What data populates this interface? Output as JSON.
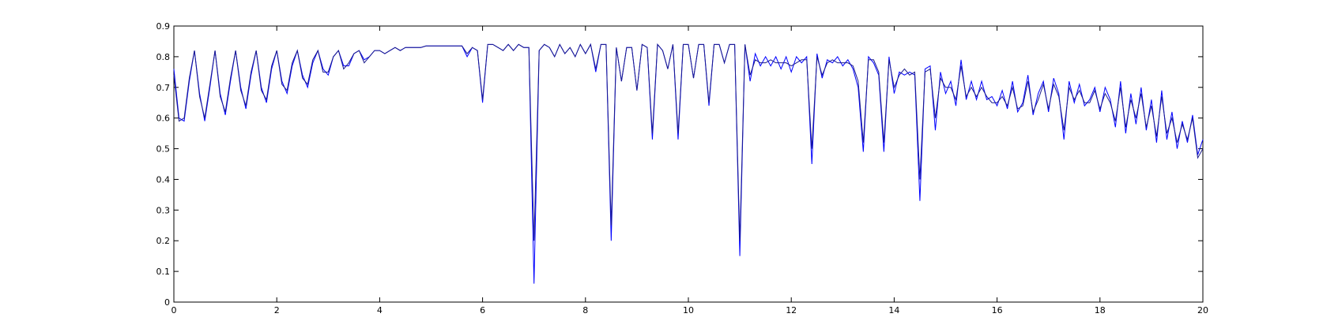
{
  "chart_data": {
    "type": "line",
    "x": [
      0,
      0.1,
      0.2,
      0.3,
      0.4,
      0.5,
      0.6,
      0.7,
      0.8,
      0.9,
      1,
      1.1,
      1.2,
      1.3,
      1.4,
      1.5,
      1.6,
      1.7,
      1.8,
      1.9,
      2,
      2.1,
      2.2,
      2.3,
      2.4,
      2.5,
      2.6,
      2.7,
      2.8,
      2.9,
      3,
      3.1,
      3.2,
      3.3,
      3.4,
      3.5,
      3.6,
      3.7,
      3.8,
      3.9,
      4,
      4.1,
      4.2,
      4.3,
      4.4,
      4.5,
      4.6,
      4.7,
      4.8,
      4.9,
      5,
      5.1,
      5.2,
      5.3,
      5.4,
      5.5,
      5.6,
      5.7,
      5.8,
      5.9,
      6,
      6.1,
      6.2,
      6.3,
      6.4,
      6.5,
      6.6,
      6.7,
      6.8,
      6.9,
      7,
      7.1,
      7.2,
      7.3,
      7.4,
      7.5,
      7.6,
      7.7,
      7.8,
      7.9,
      8,
      8.1,
      8.2,
      8.3,
      8.4,
      8.5,
      8.6,
      8.7,
      8.8,
      8.9,
      9,
      9.1,
      9.2,
      9.3,
      9.4,
      9.5,
      9.6,
      9.7,
      9.8,
      9.9,
      10,
      10.1,
      10.2,
      10.3,
      10.4,
      10.5,
      10.6,
      10.7,
      10.8,
      10.9,
      11,
      11.1,
      11.2,
      11.3,
      11.4,
      11.5,
      11.6,
      11.7,
      11.8,
      11.9,
      12,
      12.1,
      12.2,
      12.3,
      12.4,
      12.5,
      12.6,
      12.7,
      12.8,
      12.9,
      13,
      13.1,
      13.2,
      13.3,
      13.4,
      13.5,
      13.6,
      13.7,
      13.8,
      13.9,
      14,
      14.1,
      14.2,
      14.3,
      14.4,
      14.5,
      14.6,
      14.7,
      14.8,
      14.9,
      15,
      15.1,
      15.2,
      15.3,
      15.4,
      15.5,
      15.6,
      15.7,
      15.8,
      15.9,
      16,
      16.1,
      16.2,
      16.3,
      16.4,
      16.5,
      16.6,
      16.7,
      16.8,
      16.9,
      17,
      17.1,
      17.2,
      17.3,
      17.4,
      17.5,
      17.6,
      17.7,
      17.8,
      17.9,
      18,
      18.1,
      18.2,
      18.3,
      18.4,
      18.5,
      18.6,
      18.7,
      18.8,
      18.9,
      19,
      19.1,
      19.2,
      19.3,
      19.4,
      19.5,
      19.6,
      19.7,
      19.8,
      19.9,
      20
    ],
    "series": [
      {
        "color": "#0000ff",
        "values": [
          0.76,
          0.6,
          0.59,
          0.72,
          0.82,
          0.68,
          0.59,
          0.7,
          0.82,
          0.68,
          0.61,
          0.72,
          0.82,
          0.7,
          0.63,
          0.74,
          0.82,
          0.7,
          0.65,
          0.76,
          0.82,
          0.72,
          0.68,
          0.77,
          0.82,
          0.74,
          0.7,
          0.78,
          0.82,
          0.76,
          0.74,
          0.8,
          0.82,
          0.77,
          0.77,
          0.81,
          0.82,
          0.79,
          0.8,
          0.82,
          0.82,
          0.81,
          0.82,
          0.83,
          0.82,
          0.83,
          0.83,
          0.83,
          0.83,
          0.835,
          0.835,
          0.835,
          0.835,
          0.835,
          0.835,
          0.835,
          0.835,
          0.8,
          0.83,
          0.82,
          0.65,
          0.84,
          0.84,
          0.83,
          0.82,
          0.84,
          0.82,
          0.84,
          0.83,
          0.83,
          0.06,
          0.82,
          0.84,
          0.83,
          0.8,
          0.84,
          0.81,
          0.83,
          0.8,
          0.84,
          0.81,
          0.84,
          0.75,
          0.84,
          0.84,
          0.2,
          0.83,
          0.72,
          0.83,
          0.83,
          0.69,
          0.84,
          0.83,
          0.53,
          0.84,
          0.82,
          0.76,
          0.84,
          0.53,
          0.84,
          0.84,
          0.73,
          0.84,
          0.84,
          0.64,
          0.84,
          0.84,
          0.78,
          0.84,
          0.84,
          0.15,
          0.84,
          0.72,
          0.81,
          0.77,
          0.8,
          0.77,
          0.8,
          0.76,
          0.8,
          0.75,
          0.8,
          0.78,
          0.8,
          0.45,
          0.81,
          0.73,
          0.79,
          0.78,
          0.8,
          0.77,
          0.79,
          0.76,
          0.7,
          0.49,
          0.8,
          0.78,
          0.74,
          0.49,
          0.8,
          0.68,
          0.75,
          0.74,
          0.75,
          0.74,
          0.33,
          0.76,
          0.77,
          0.56,
          0.75,
          0.68,
          0.72,
          0.64,
          0.79,
          0.66,
          0.72,
          0.66,
          0.72,
          0.66,
          0.67,
          0.64,
          0.69,
          0.63,
          0.72,
          0.62,
          0.65,
          0.74,
          0.61,
          0.68,
          0.72,
          0.62,
          0.73,
          0.68,
          0.53,
          0.72,
          0.65,
          0.71,
          0.64,
          0.66,
          0.7,
          0.62,
          0.7,
          0.66,
          0.57,
          0.72,
          0.55,
          0.68,
          0.58,
          0.7,
          0.56,
          0.66,
          0.52,
          0.69,
          0.53,
          0.62,
          0.5,
          0.59,
          0.52,
          0.61,
          0.48,
          0.53
        ]
      },
      {
        "color": "#1a1a8c",
        "values": [
          0.74,
          0.59,
          0.6,
          0.73,
          0.82,
          0.67,
          0.6,
          0.71,
          0.82,
          0.67,
          0.62,
          0.73,
          0.82,
          0.69,
          0.64,
          0.75,
          0.82,
          0.69,
          0.66,
          0.77,
          0.82,
          0.71,
          0.69,
          0.78,
          0.82,
          0.73,
          0.71,
          0.79,
          0.82,
          0.75,
          0.75,
          0.8,
          0.82,
          0.76,
          0.78,
          0.81,
          0.82,
          0.78,
          0.8,
          0.82,
          0.82,
          0.81,
          0.82,
          0.83,
          0.82,
          0.83,
          0.83,
          0.83,
          0.83,
          0.835,
          0.835,
          0.835,
          0.835,
          0.835,
          0.835,
          0.835,
          0.835,
          0.81,
          0.83,
          0.82,
          0.66,
          0.84,
          0.84,
          0.83,
          0.82,
          0.84,
          0.82,
          0.84,
          0.83,
          0.83,
          0.2,
          0.82,
          0.84,
          0.83,
          0.8,
          0.84,
          0.81,
          0.83,
          0.8,
          0.84,
          0.81,
          0.84,
          0.76,
          0.84,
          0.84,
          0.25,
          0.83,
          0.72,
          0.83,
          0.83,
          0.69,
          0.84,
          0.83,
          0.55,
          0.84,
          0.82,
          0.76,
          0.84,
          0.55,
          0.84,
          0.84,
          0.73,
          0.84,
          0.84,
          0.65,
          0.84,
          0.84,
          0.78,
          0.84,
          0.84,
          0.2,
          0.84,
          0.74,
          0.79,
          0.78,
          0.78,
          0.79,
          0.78,
          0.78,
          0.78,
          0.77,
          0.78,
          0.79,
          0.79,
          0.5,
          0.8,
          0.74,
          0.78,
          0.79,
          0.78,
          0.78,
          0.78,
          0.77,
          0.72,
          0.52,
          0.79,
          0.79,
          0.75,
          0.52,
          0.79,
          0.7,
          0.74,
          0.76,
          0.74,
          0.75,
          0.4,
          0.75,
          0.76,
          0.6,
          0.73,
          0.7,
          0.7,
          0.66,
          0.77,
          0.67,
          0.7,
          0.67,
          0.7,
          0.67,
          0.65,
          0.65,
          0.67,
          0.64,
          0.7,
          0.63,
          0.64,
          0.72,
          0.62,
          0.66,
          0.71,
          0.63,
          0.71,
          0.67,
          0.56,
          0.7,
          0.66,
          0.69,
          0.65,
          0.65,
          0.69,
          0.63,
          0.68,
          0.65,
          0.59,
          0.7,
          0.57,
          0.66,
          0.6,
          0.68,
          0.57,
          0.64,
          0.54,
          0.67,
          0.55,
          0.6,
          0.52,
          0.58,
          0.53,
          0.6,
          0.47,
          0.5
        ]
      }
    ],
    "xlim": [
      0,
      20
    ],
    "ylim": [
      0,
      0.9
    ],
    "xticks": [
      0,
      2,
      4,
      6,
      8,
      10,
      12,
      14,
      16,
      18,
      20
    ],
    "yticks": [
      0,
      0.1,
      0.2,
      0.3,
      0.4,
      0.5,
      0.6,
      0.7,
      0.8,
      0.9
    ]
  }
}
